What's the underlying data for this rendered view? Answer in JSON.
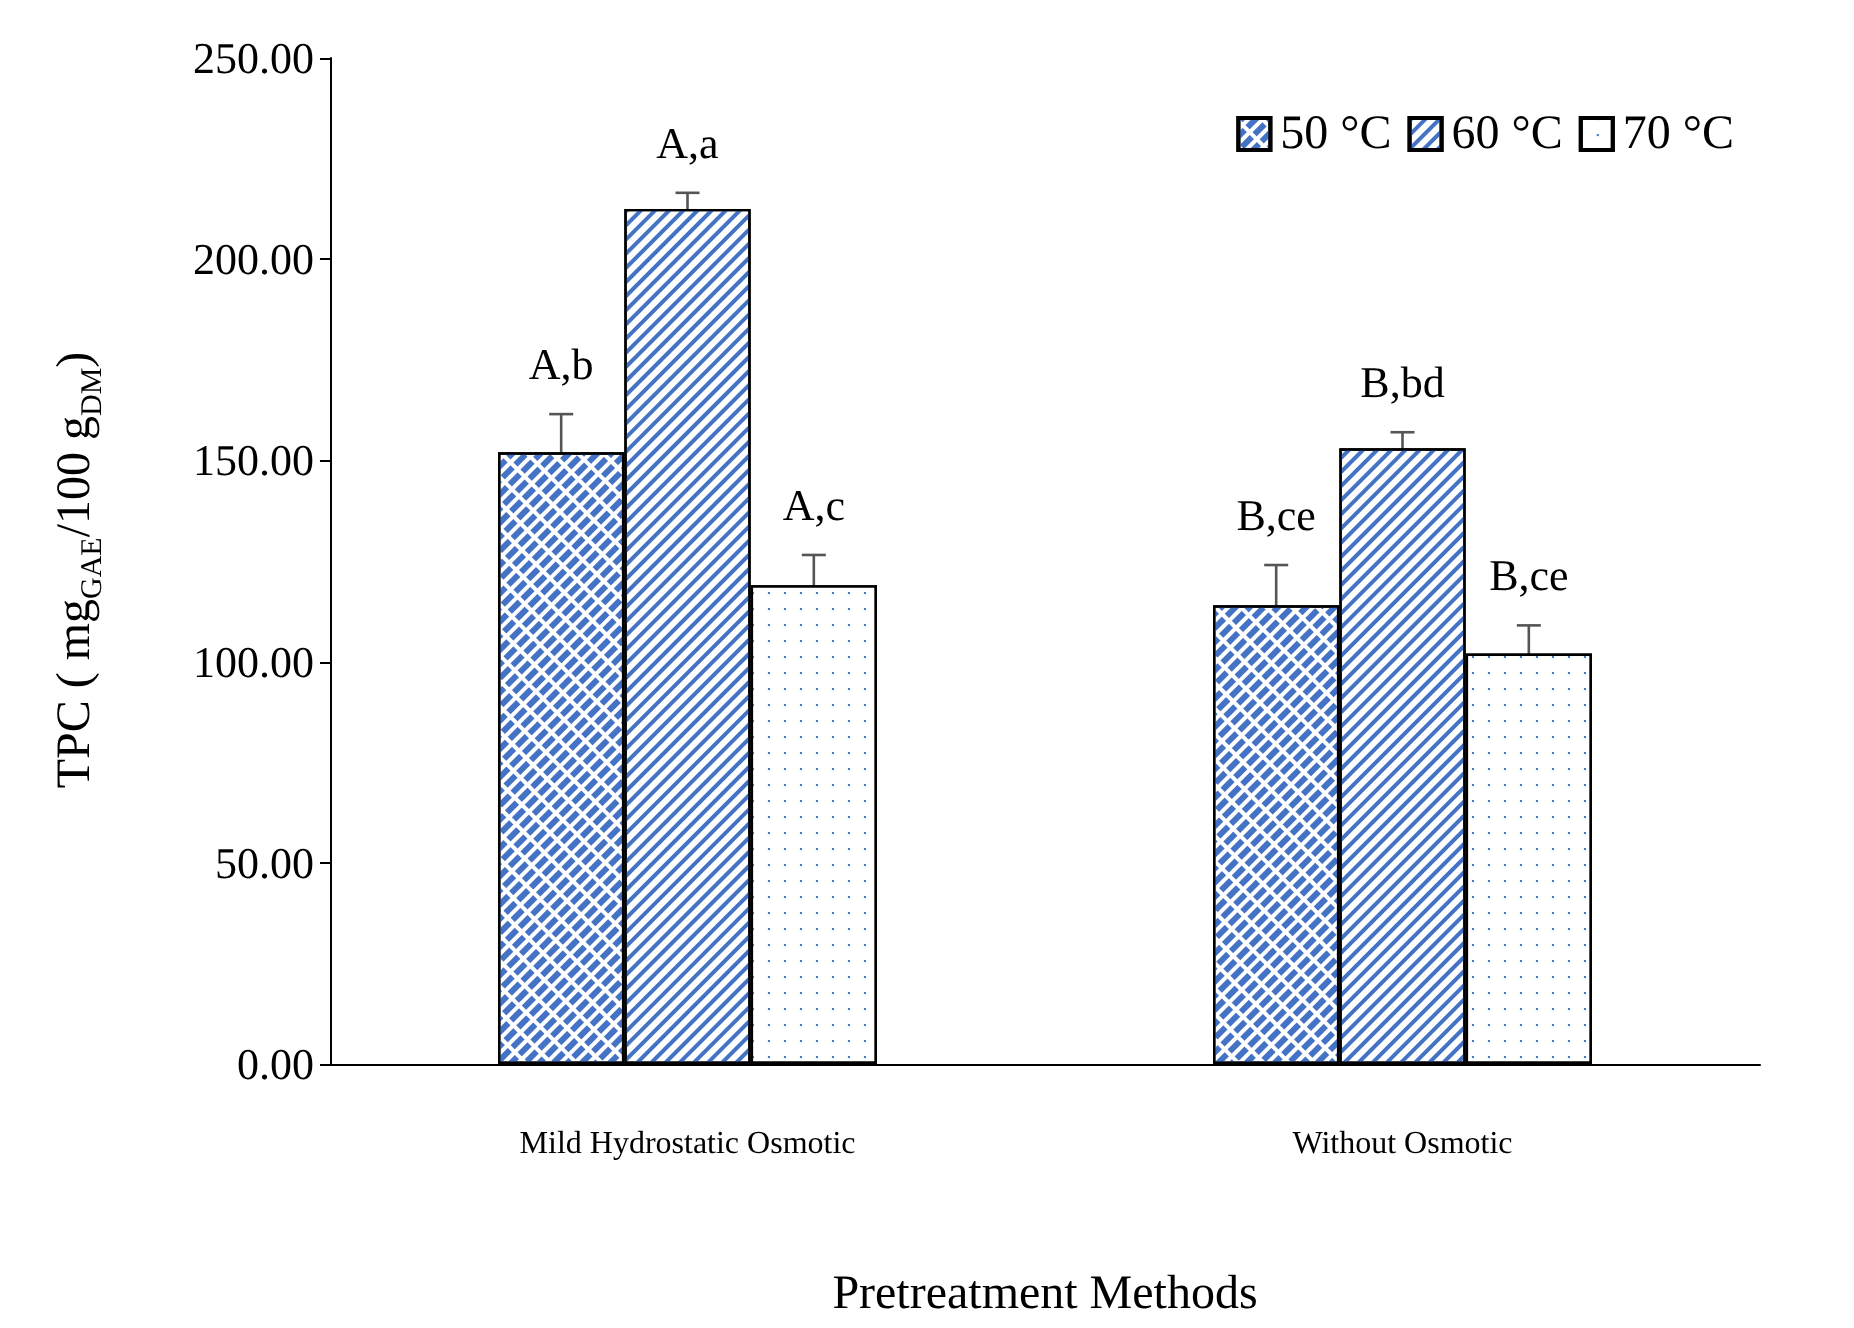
{
  "chart_data": {
    "type": "bar",
    "xlabel": "Pretreatment Methods",
    "ylabel": "TPC ( mg$_{GAE}$/100 g$_{DM}$)",
    "categories": [
      "Mild Hydrostatic Osmotic",
      "Without Osmotic"
    ],
    "series": [
      {
        "name": "50 °C",
        "color": "#ffffff",
        "values": [
          152,
          114
        ],
        "errors": [
          9.5,
          10
        ],
        "value_labels": [
          "A,b",
          "B,ce"
        ]
      },
      {
        "name": "60 °C",
        "color": "#ffffff",
        "values": [
          212.5,
          153
        ],
        "errors": [
          4,
          4
        ],
        "value_labels": [
          "A,a",
          "B,bd"
        ]
      },
      {
        "name": "70 °C",
        "color": "#ffffff",
        "values": [
          119,
          102
        ],
        "errors": [
          7.5,
          7
        ],
        "value_labels": [
          "A,c",
          "B,ce"
        ]
      }
    ],
    "ylim": [
      0,
      250
    ],
    "yticks": [
      {
        "value": 0,
        "label": "0.00"
      },
      {
        "value": 50,
        "label": "50.00"
      },
      {
        "value": 100,
        "label": "100.00"
      },
      {
        "value": 150,
        "label": "150.00"
      },
      {
        "value": 200,
        "label": "200.00"
      },
      {
        "value": 250,
        "label": "250.00"
      }
    ],
    "grid": false,
    "legend": "top right"
  }
}
